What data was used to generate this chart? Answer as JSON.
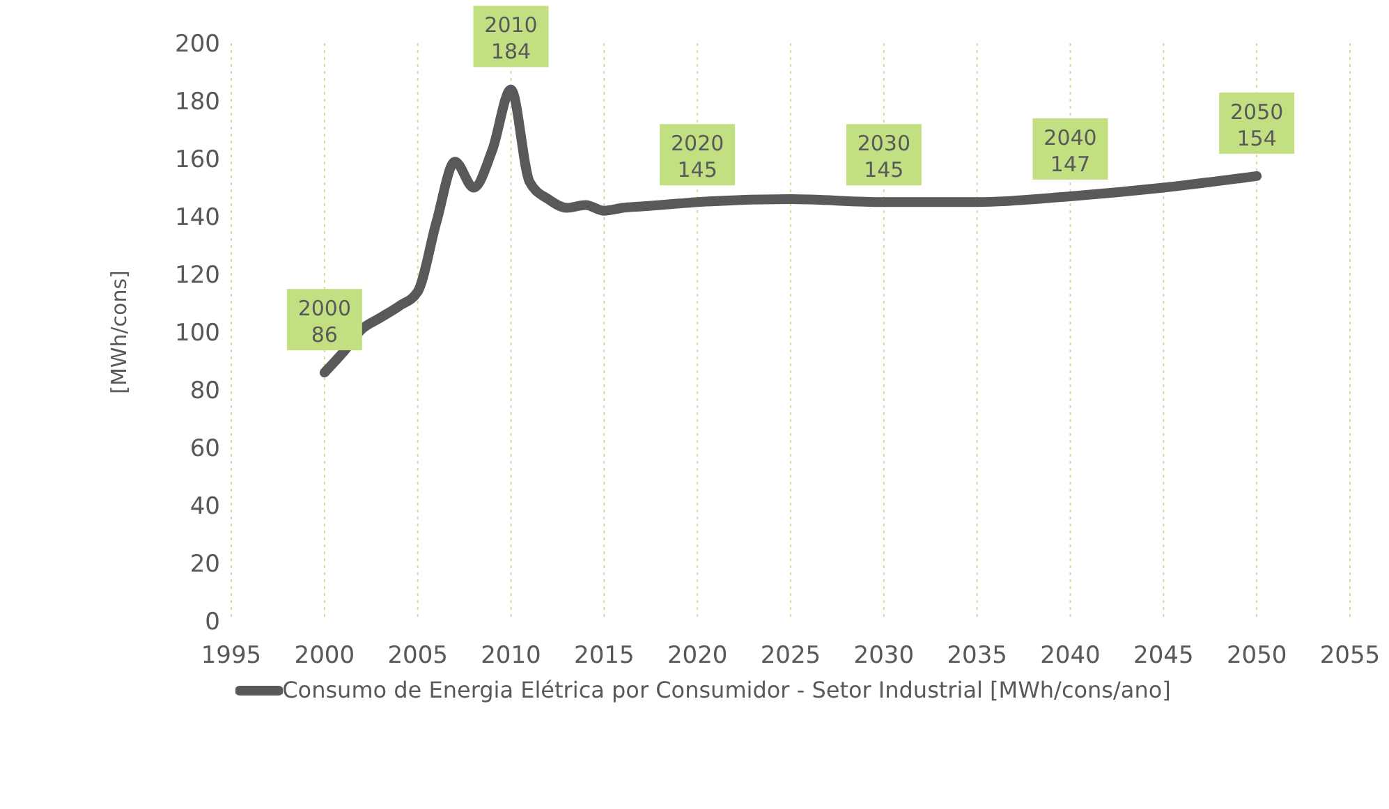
{
  "chart_data": {
    "type": "line",
    "ylabel": "[MWh/cons]",
    "x": [
      2000,
      2001,
      2002,
      2003,
      2004,
      2005,
      2006,
      2007,
      2008,
      2009,
      2010,
      2011,
      2012,
      2013,
      2014,
      2015,
      2016,
      2017,
      2018,
      2019,
      2020,
      2025,
      2030,
      2035,
      2040,
      2045,
      2050
    ],
    "series": [
      {
        "name": "Consumo de Energia Elétrica por Consumidor - Setor Industrial [MWh/cons/ano]",
        "color": "#595959",
        "values": [
          86,
          93,
          101,
          105,
          109,
          114,
          138,
          159,
          150,
          163,
          184,
          152,
          146,
          143,
          144,
          142,
          143,
          143.5,
          144,
          144.5,
          145,
          146,
          145,
          145,
          147,
          150,
          154
        ]
      }
    ],
    "xlim": [
      1995,
      2055
    ],
    "xticks": [
      1995,
      2000,
      2005,
      2010,
      2015,
      2020,
      2025,
      2030,
      2035,
      2040,
      2045,
      2050,
      2055
    ],
    "ylim": [
      0,
      200
    ],
    "yticks": [
      0,
      20,
      40,
      60,
      80,
      100,
      120,
      140,
      160,
      180,
      200
    ],
    "grid": "x",
    "legend": "bottom",
    "marker": "none",
    "line_style": "solid",
    "annotations": [
      {
        "text": "2000\n86",
        "x": 2000,
        "y": 86
      },
      {
        "text": "2010\n184",
        "x": 2010,
        "y": 184
      },
      {
        "text": "2020\n145",
        "x": 2020,
        "y": 145
      },
      {
        "text": "2030\n145",
        "x": 2030,
        "y": 145
      },
      {
        "text": "2040\n147",
        "x": 2040,
        "y": 147
      },
      {
        "text": "2050\n154",
        "x": 2050,
        "y": 154
      }
    ]
  }
}
